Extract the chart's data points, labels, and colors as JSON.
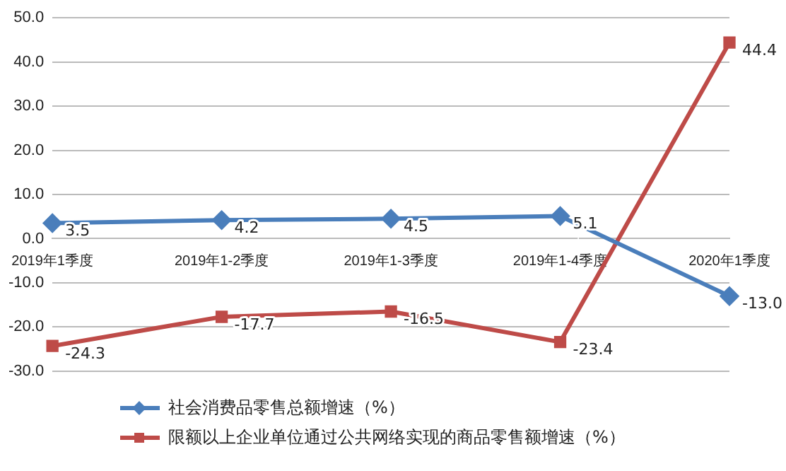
{
  "chart_data": {
    "type": "line",
    "categories": [
      "2019年1季度",
      "2019年1-2季度",
      "2019年1-3季度",
      "2019年1-4季度",
      "2020年1季度"
    ],
    "series": [
      {
        "name": "社会消费品零售总额增速（%）",
        "color": "#4a7ebb",
        "marker": "diamond",
        "values": [
          3.5,
          4.2,
          4.5,
          5.1,
          -13.0
        ],
        "value_labels": [
          "3.5",
          "4.2",
          "4.5",
          "5.1",
          "-13.0"
        ]
      },
      {
        "name": "限额以上企业单位通过公共网络实现的商品零售额增速（%）",
        "color": "#be4b48",
        "marker": "square",
        "values": [
          -24.3,
          -17.7,
          -16.5,
          -23.4,
          44.4
        ],
        "value_labels": [
          "-24.3",
          "-17.7",
          "-16.5",
          "-23.4",
          "44.4"
        ]
      }
    ],
    "ylim": [
      -30,
      50
    ],
    "yticks": [
      {
        "value": -30,
        "label": "-30.0"
      },
      {
        "value": -20,
        "label": "-20.0"
      },
      {
        "value": -10,
        "label": "-10.0"
      },
      {
        "value": 0,
        "label": "0.0"
      },
      {
        "value": 10,
        "label": "10.0"
      },
      {
        "value": 20,
        "label": "20.0"
      },
      {
        "value": 30,
        "label": "30.0"
      },
      {
        "value": 40,
        "label": "40.0"
      },
      {
        "value": 50,
        "label": "50.0"
      }
    ],
    "grid": "y",
    "legend": "bottom",
    "line_style": "solid"
  }
}
